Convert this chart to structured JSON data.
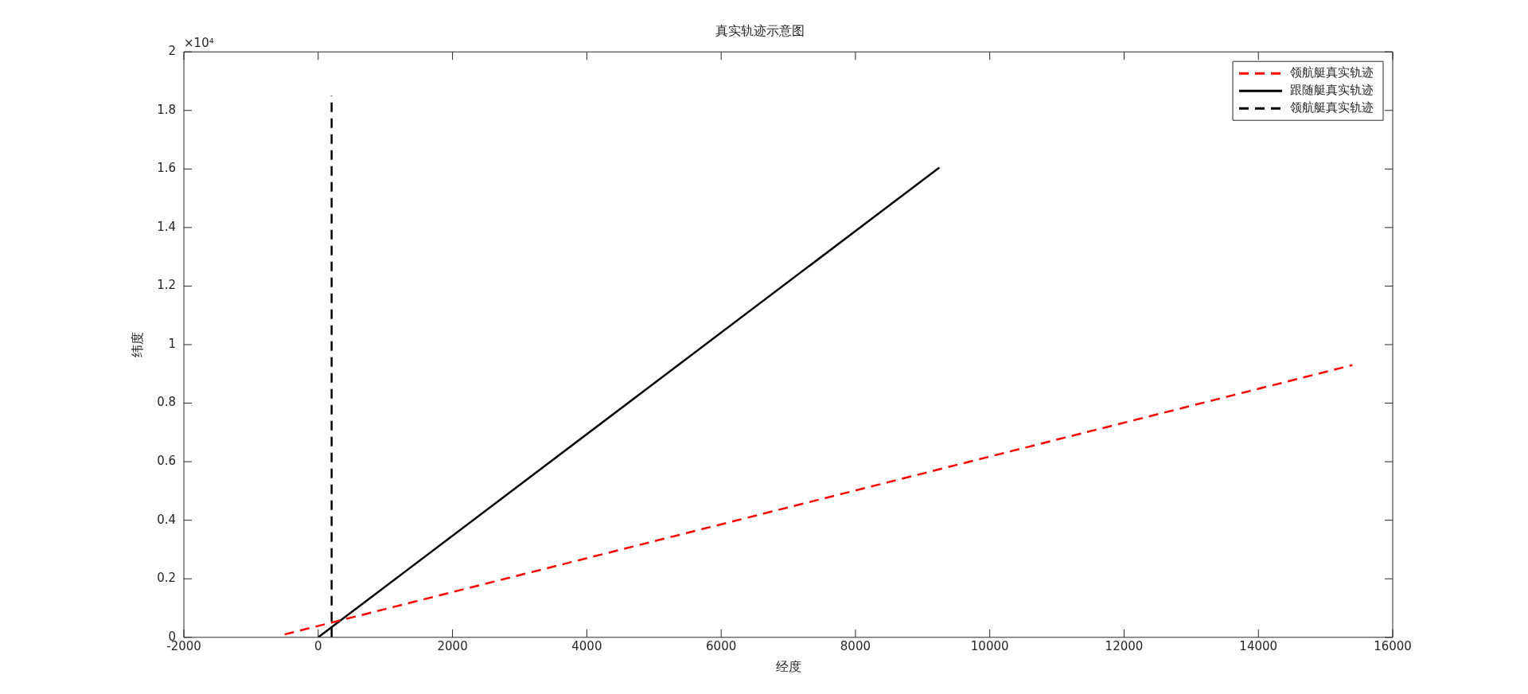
{
  "chart_data": {
    "type": "line",
    "title": "真实轨迹示意图",
    "xlabel": "经度",
    "ylabel": "纬度",
    "annotations": [
      "×10⁴"
    ],
    "xlim": [
      -2000,
      16000
    ],
    "xticks": [
      -2000,
      0,
      2000,
      4000,
      6000,
      8000,
      10000,
      12000,
      14000,
      16000
    ],
    "ylim": [
      0,
      2
    ],
    "yticks": [
      0,
      0.2,
      0.4,
      0.6,
      0.8,
      1,
      1.2,
      1.4,
      1.6,
      1.8,
      2
    ],
    "grid": false,
    "legend": "top right",
    "series": [
      {
        "name": "领航艇真实轨迹",
        "color": "#ff0000",
        "line_style": "dashed",
        "x": [
          -500,
          15400
        ],
        "values": [
          0.01,
          0.93
        ]
      },
      {
        "name": "跟随艇真实轨迹",
        "color": "#000000",
        "line_style": "solid",
        "x": [
          0,
          9250
        ],
        "values": [
          0,
          1.605
        ]
      },
      {
        "name": "领航艇真实轨迹",
        "color": "#000000",
        "line_style": "dashed",
        "x": [
          200,
          200
        ],
        "values": [
          0,
          1.85
        ]
      }
    ]
  }
}
